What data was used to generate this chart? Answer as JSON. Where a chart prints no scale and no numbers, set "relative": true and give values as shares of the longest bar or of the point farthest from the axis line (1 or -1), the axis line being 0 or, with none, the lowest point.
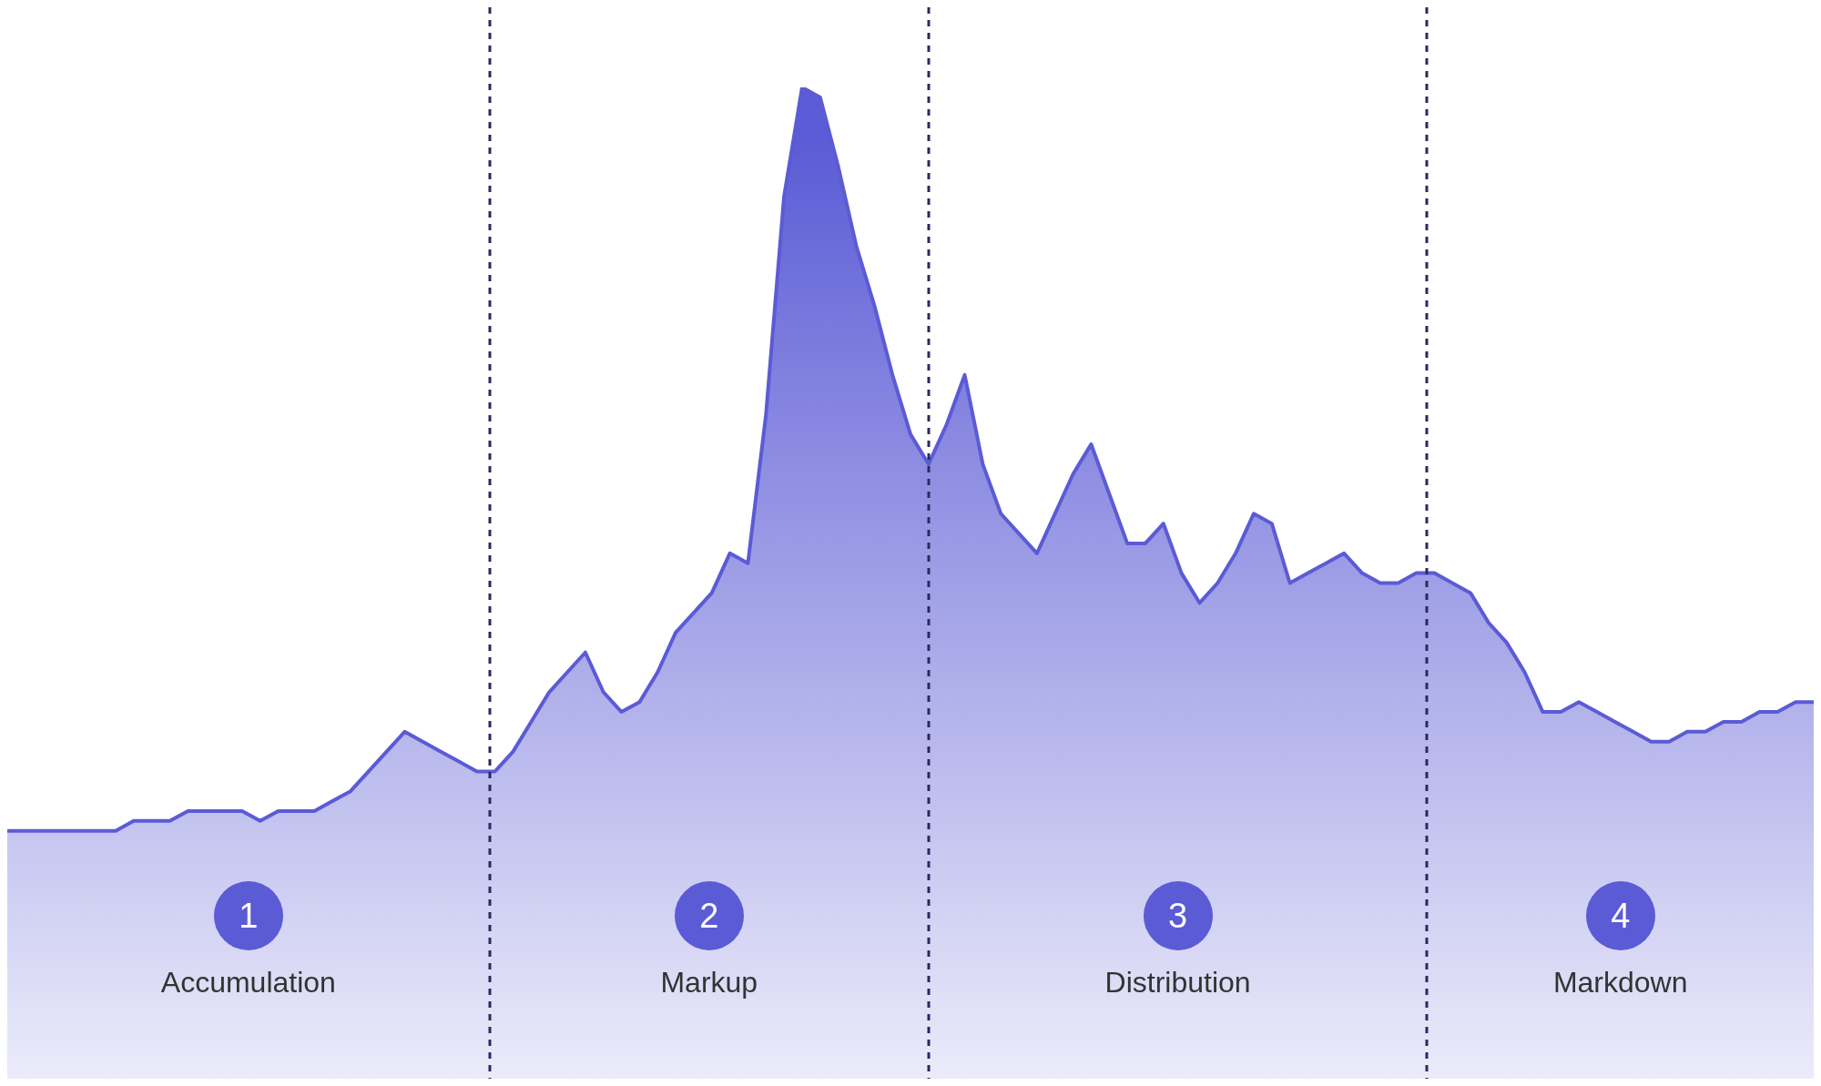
{
  "chart_data": {
    "type": "area",
    "relative": true,
    "tick_labels": false,
    "categories": [
      null,
      null,
      null,
      null,
      null,
      null,
      null,
      null,
      null,
      null,
      null,
      null,
      null,
      null,
      null,
      null,
      null,
      null,
      null,
      null,
      null,
      null,
      null,
      null,
      null,
      null,
      null,
      null,
      null,
      null,
      null,
      null,
      null,
      null,
      null,
      null,
      null,
      null,
      null,
      null,
      null,
      null,
      null,
      null,
      null,
      null,
      null,
      null,
      null,
      null,
      null,
      null,
      null,
      null,
      null,
      null,
      null,
      null,
      null,
      null,
      null,
      null,
      null,
      null,
      null,
      null,
      null,
      null,
      null,
      null,
      null,
      null,
      null,
      null,
      null,
      null,
      null,
      null,
      null,
      null,
      null,
      null,
      null,
      null,
      null,
      null,
      null,
      null,
      null,
      null,
      null,
      null,
      null,
      null,
      null,
      null,
      null,
      null,
      null,
      null,
      null
    ],
    "series": [
      {
        "color": "#5b5bd6",
        "values": [
          0.25,
          0.25,
          0.25,
          0.25,
          0.25,
          0.25,
          0.25,
          0.26,
          0.26,
          0.26,
          0.27,
          0.27,
          0.27,
          0.27,
          0.26,
          0.27,
          0.27,
          0.27,
          0.28,
          0.29,
          0.31,
          0.33,
          0.35,
          0.34,
          0.33,
          0.32,
          0.31,
          0.31,
          0.33,
          0.36,
          0.39,
          0.41,
          0.43,
          0.39,
          0.37,
          0.38,
          0.41,
          0.45,
          0.47,
          0.49,
          0.53,
          0.52,
          0.67,
          0.89,
          1,
          0.99,
          0.92,
          0.84,
          0.78,
          0.71,
          0.65,
          0.62,
          0.66,
          0.71,
          0.62,
          0.57,
          0.55,
          0.53,
          0.57,
          0.61,
          0.64,
          0.59,
          0.54,
          0.54,
          0.56,
          0.51,
          0.48,
          0.5,
          0.53,
          0.57,
          0.56,
          0.5,
          0.51,
          0.52,
          0.53,
          0.51,
          0.5,
          0.5,
          0.51,
          0.51,
          0.5,
          0.49,
          0.46,
          0.44,
          0.41,
          0.37,
          0.37,
          0.38,
          0.37,
          0.36,
          0.35,
          0.34,
          0.34,
          0.35,
          0.35,
          0.36,
          0.36,
          0.37,
          0.37,
          0.38,
          0.38
        ]
      }
    ],
    "annotations": [
      "1",
      "Accumulation",
      "2",
      "Markup",
      "3",
      "Distribution",
      "4",
      "Markdown"
    ]
  }
}
